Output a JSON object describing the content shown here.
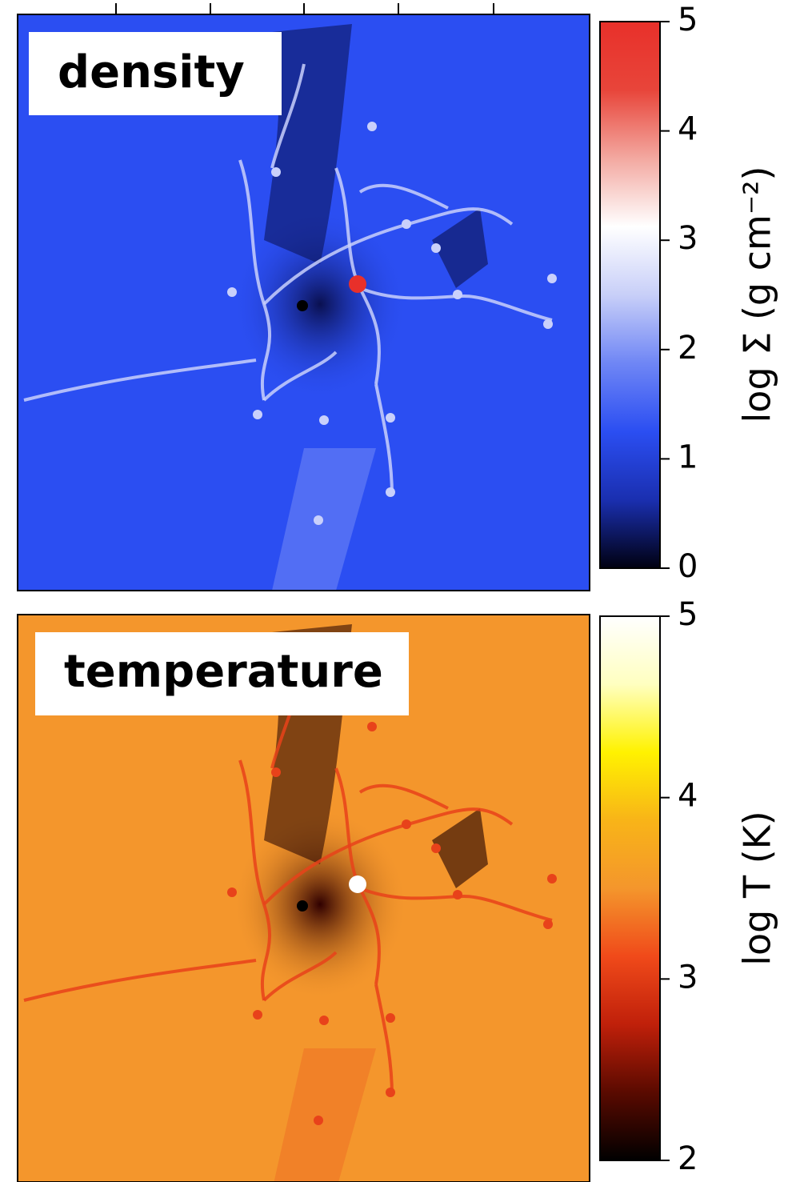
{
  "chart_data": [
    {
      "type": "heatmap",
      "label": "density",
      "colorbar_label": "log Σ (g cm⁻²)",
      "clim": [
        0,
        5
      ],
      "cticks": [
        0,
        1,
        2,
        3,
        4,
        5
      ],
      "background": "#2b4ef2",
      "colormap": [
        "#000010",
        "#1a2fb0",
        "#2b4ef2",
        "#6f86f5",
        "#c8cff8",
        "#ffffff",
        "#f3a8a0",
        "#e8453a",
        "#e8302a"
      ]
    },
    {
      "type": "heatmap",
      "label": "temperature",
      "colorbar_label": "log T (K)",
      "clim": [
        2,
        5
      ],
      "cticks": [
        2,
        3,
        4,
        5
      ],
      "background": "#f4962c",
      "colormap": [
        "#000000",
        "#5a0a00",
        "#c0200a",
        "#f04a1a",
        "#f4962c",
        "#f8b418",
        "#fff200",
        "#ffffc0",
        "#ffffff"
      ]
    }
  ]
}
